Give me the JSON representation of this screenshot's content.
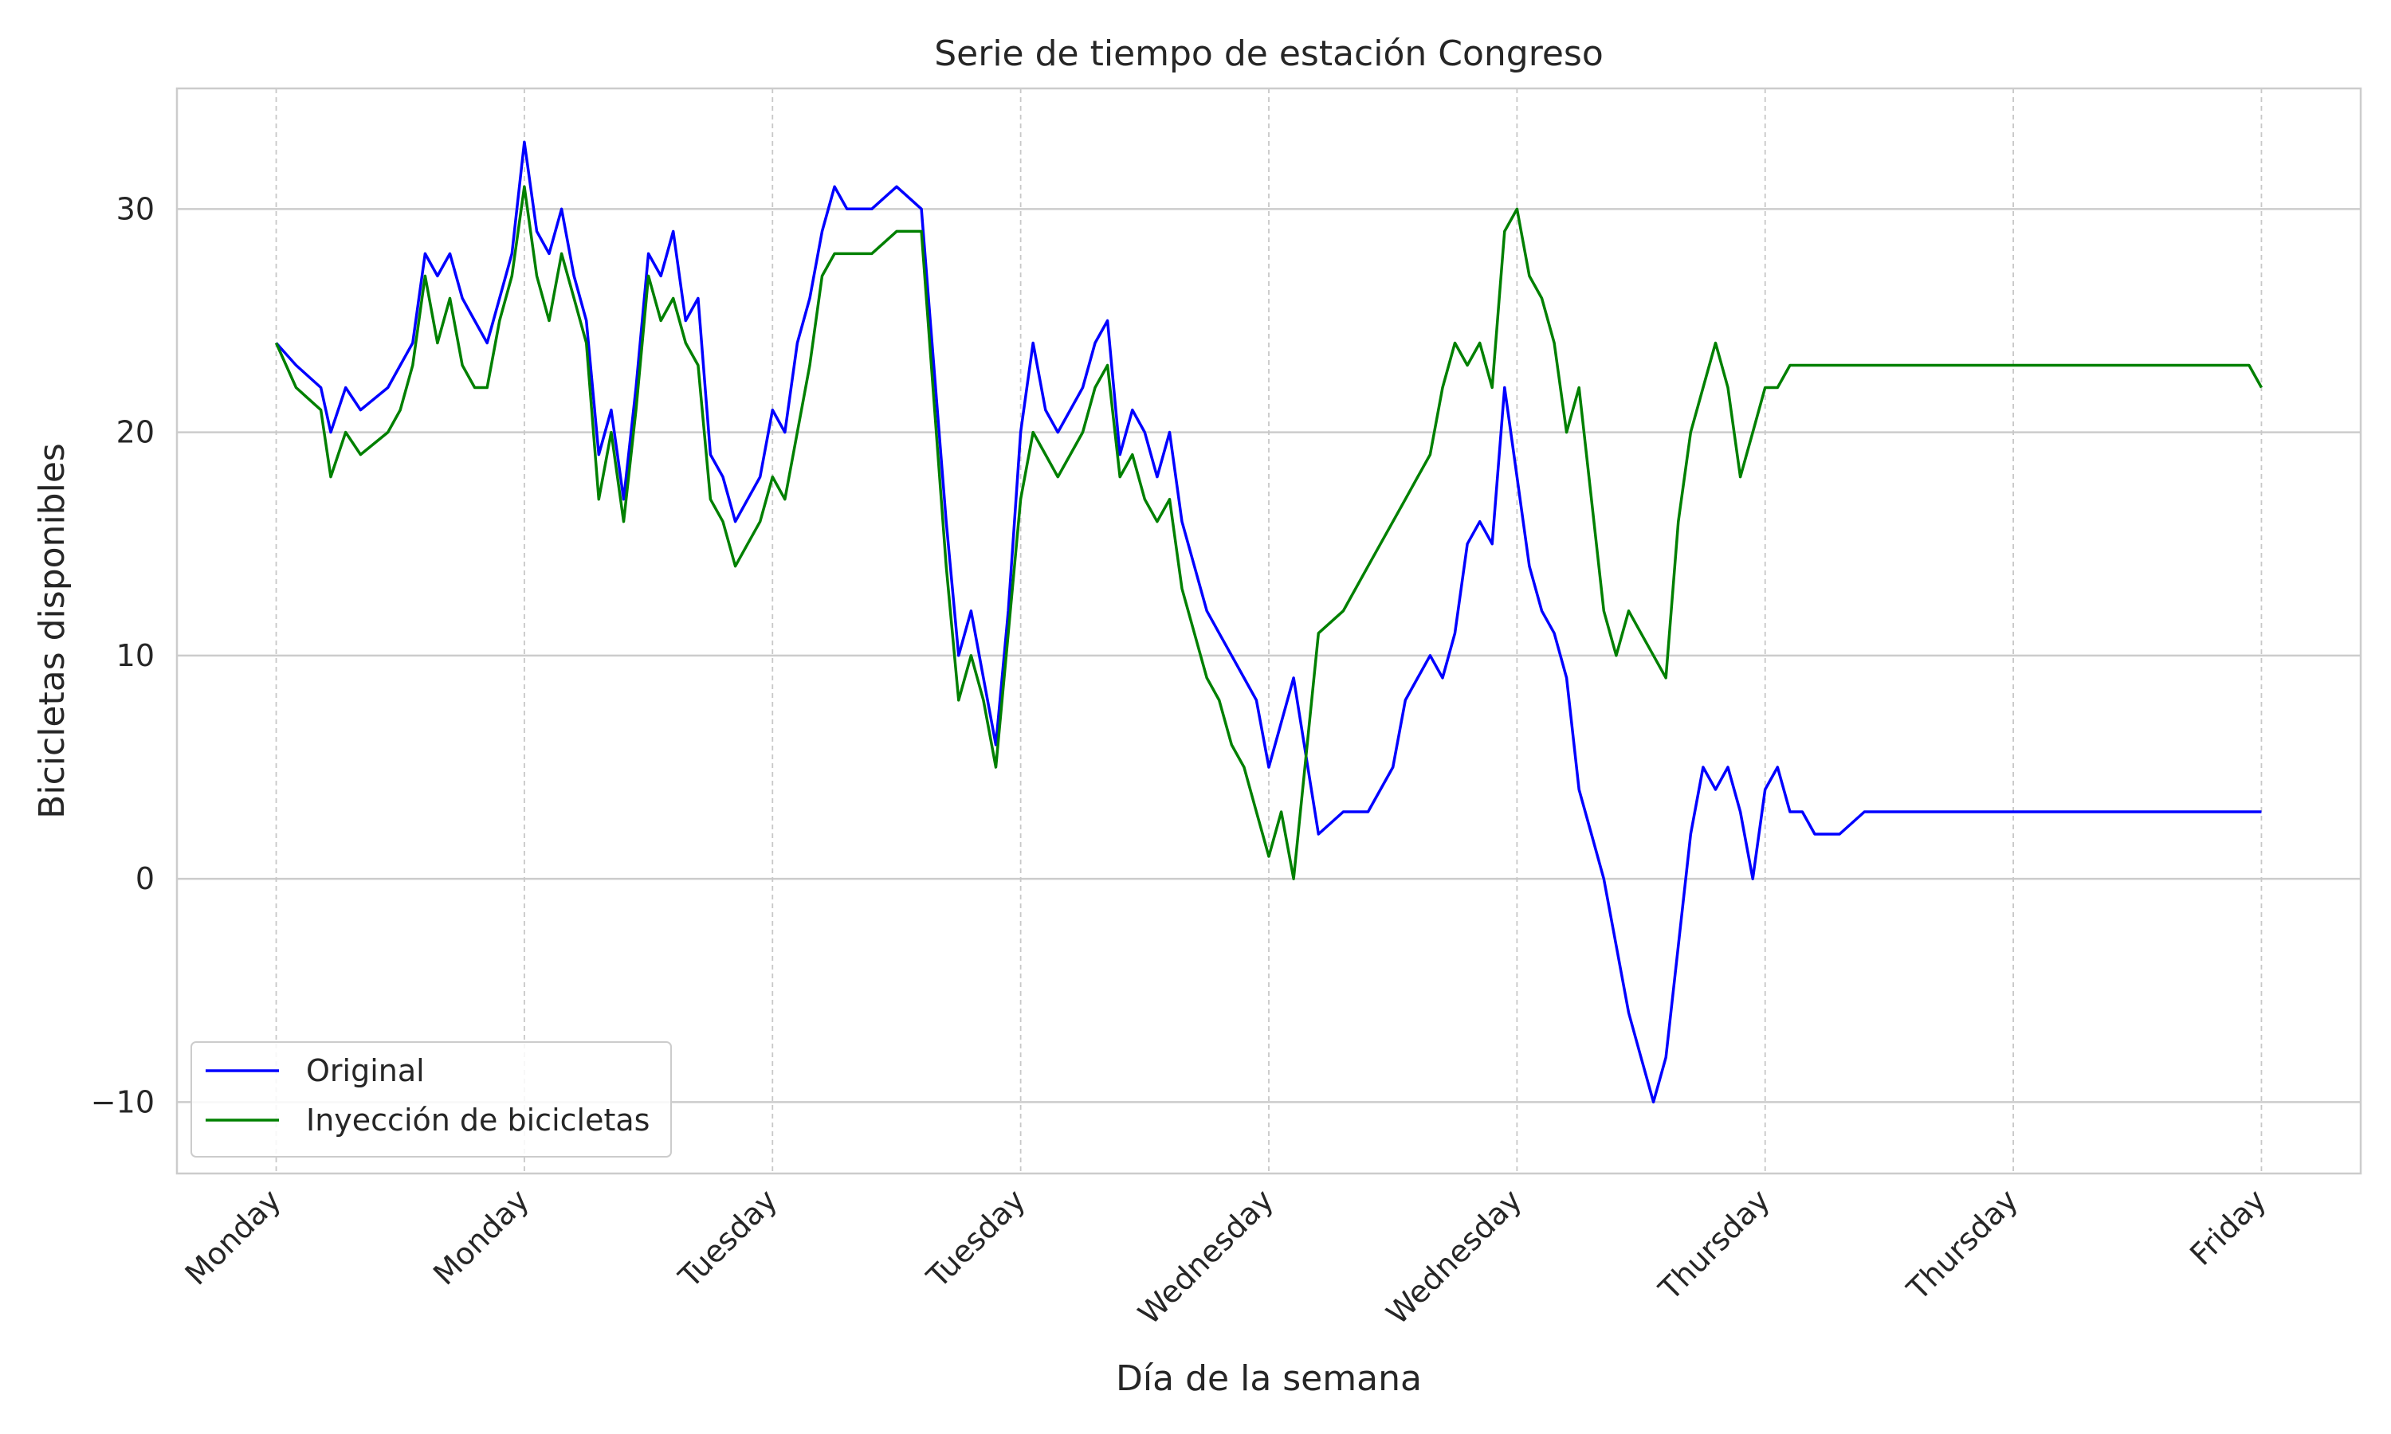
{
  "chart_data": {
    "type": "line",
    "title": "Serie de tiempo de estación  Congreso",
    "xlabel": "Día de la semana",
    "ylabel": "Bicicletas disponibles",
    "xlim": [
      -0.4,
      8.4
    ],
    "ylim": [
      -13.2,
      35.4
    ],
    "x_ticks": [
      0,
      1,
      2,
      3,
      4,
      5,
      6,
      7,
      8
    ],
    "x_tick_labels": [
      "Monday",
      "Monday",
      "Tuesday",
      "Tuesday",
      "Wednesday",
      "Wednesday",
      "Thursday",
      "Thursday",
      "Friday"
    ],
    "y_ticks": [
      -10,
      0,
      10,
      20,
      30
    ],
    "y_tick_labels": [
      "−10",
      "0",
      "10",
      "20",
      "30"
    ],
    "grid": true,
    "legend_position": "bottom-left",
    "series": [
      {
        "name": "Original",
        "color": "#0000ff",
        "x": [
          0,
          0.08,
          0.18,
          0.22,
          0.28,
          0.34,
          0.45,
          0.5,
          0.55,
          0.6,
          0.65,
          0.7,
          0.75,
          0.8,
          0.85,
          0.9,
          0.95,
          1.0,
          1.05,
          1.1,
          1.15,
          1.2,
          1.25,
          1.3,
          1.35,
          1.4,
          1.45,
          1.5,
          1.55,
          1.6,
          1.65,
          1.7,
          1.75,
          1.8,
          1.85,
          1.9,
          1.95,
          2.0,
          2.05,
          2.1,
          2.15,
          2.2,
          2.25,
          2.3,
          2.4,
          2.5,
          2.6,
          2.7,
          2.75,
          2.8,
          2.85,
          2.9,
          2.95,
          3.0,
          3.05,
          3.1,
          3.15,
          3.2,
          3.25,
          3.3,
          3.35,
          3.4,
          3.45,
          3.5,
          3.55,
          3.6,
          3.65,
          3.7,
          3.75,
          3.8,
          3.85,
          3.9,
          3.95,
          4.0,
          4.05,
          4.1,
          4.2,
          4.3,
          4.4,
          4.5,
          4.55,
          4.6,
          4.65,
          4.7,
          4.75,
          4.8,
          4.85,
          4.9,
          4.95,
          5.0,
          5.05,
          5.1,
          5.15,
          5.2,
          5.25,
          5.3,
          5.35,
          5.4,
          5.45,
          5.5,
          5.55,
          5.6,
          5.65,
          5.7,
          5.75,
          5.8,
          5.85,
          5.9,
          5.95,
          6.0,
          6.05,
          6.1,
          6.15,
          6.2,
          6.3,
          6.4,
          6.5,
          6.6,
          6.7,
          6.8,
          6.85,
          6.9,
          6.95,
          7.0,
          7.05,
          7.1,
          7.15,
          7.2,
          7.25,
          7.3,
          7.35,
          7.4,
          7.45,
          7.5,
          7.55,
          7.6,
          7.65,
          7.7,
          7.75,
          7.8,
          7.85,
          7.9,
          7.95,
          8.0
        ],
        "y": [
          24,
          23,
          22,
          20,
          22,
          21,
          22,
          23,
          24,
          28,
          27,
          28,
          26,
          25,
          24,
          26,
          28,
          33,
          29,
          28,
          30,
          27,
          25,
          19,
          21,
          17,
          22,
          28,
          27,
          29,
          25,
          26,
          19,
          18,
          16,
          17,
          18,
          21,
          20,
          24,
          26,
          29,
          31,
          30,
          30,
          31,
          30,
          16,
          10,
          12,
          9,
          6,
          12,
          20,
          24,
          21,
          20,
          21,
          22,
          24,
          25,
          19,
          21,
          20,
          18,
          20,
          16,
          14,
          12,
          11,
          10,
          9,
          8,
          5,
          7,
          9,
          2,
          3,
          3,
          5,
          8,
          9,
          10,
          9,
          11,
          15,
          16,
          15,
          22,
          18,
          14,
          12,
          11,
          9,
          4,
          2,
          0,
          -3,
          -6,
          -8,
          -10,
          -8,
          -3,
          2,
          5,
          4,
          5,
          3,
          0,
          4,
          5,
          3,
          3,
          2,
          2,
          3,
          3,
          3,
          3,
          3,
          3,
          3,
          3,
          3,
          3,
          3,
          3,
          3,
          3,
          3,
          3,
          3,
          3,
          3,
          3,
          3,
          3,
          3,
          3,
          3,
          3,
          3,
          3,
          3
        ]
      },
      {
        "name": "Inyección de bicicletas",
        "color": "#008000",
        "x": [
          0,
          0.08,
          0.18,
          0.22,
          0.28,
          0.34,
          0.45,
          0.5,
          0.55,
          0.6,
          0.65,
          0.7,
          0.75,
          0.8,
          0.85,
          0.9,
          0.95,
          1.0,
          1.05,
          1.1,
          1.15,
          1.2,
          1.25,
          1.3,
          1.35,
          1.4,
          1.45,
          1.5,
          1.55,
          1.6,
          1.65,
          1.7,
          1.75,
          1.8,
          1.85,
          1.9,
          1.95,
          2.0,
          2.05,
          2.1,
          2.15,
          2.2,
          2.25,
          2.3,
          2.4,
          2.5,
          2.6,
          2.7,
          2.75,
          2.8,
          2.85,
          2.9,
          2.95,
          3.0,
          3.05,
          3.1,
          3.15,
          3.2,
          3.25,
          3.3,
          3.35,
          3.4,
          3.45,
          3.5,
          3.55,
          3.6,
          3.65,
          3.7,
          3.75,
          3.8,
          3.85,
          3.9,
          3.95,
          4.0,
          4.05,
          4.1,
          4.2,
          4.3,
          4.4,
          4.5,
          4.55,
          4.6,
          4.65,
          4.7,
          4.75,
          4.8,
          4.85,
          4.9,
          4.95,
          5.0,
          5.05,
          5.1,
          5.15,
          5.2,
          5.25,
          5.3,
          5.35,
          5.4,
          5.45,
          5.5,
          5.55,
          5.6,
          5.65,
          5.7,
          5.75,
          5.8,
          5.85,
          5.9,
          5.95,
          6.0,
          6.05,
          6.1,
          6.15,
          6.2,
          6.3,
          6.4,
          6.5,
          6.6,
          6.7,
          6.8,
          6.85,
          6.9,
          6.95,
          7.0,
          7.05,
          7.1,
          7.15,
          7.2,
          7.25,
          7.3,
          7.35,
          7.4,
          7.45,
          7.5,
          7.55,
          7.6,
          7.65,
          7.7,
          7.75,
          7.8,
          7.85,
          7.9,
          7.95,
          8.0
        ],
        "y": [
          24,
          22,
          21,
          18,
          20,
          19,
          20,
          21,
          23,
          27,
          24,
          26,
          23,
          22,
          22,
          25,
          27,
          31,
          27,
          25,
          28,
          26,
          24,
          17,
          20,
          16,
          21,
          27,
          25,
          26,
          24,
          23,
          17,
          16,
          14,
          15,
          16,
          18,
          17,
          20,
          23,
          27,
          28,
          28,
          28,
          29,
          29,
          14,
          8,
          10,
          8,
          5,
          11,
          17,
          20,
          19,
          18,
          19,
          20,
          22,
          23,
          18,
          19,
          17,
          16,
          17,
          13,
          11,
          9,
          8,
          6,
          5,
          3,
          1,
          3,
          0,
          11,
          12,
          14,
          16,
          17,
          18,
          19,
          22,
          24,
          23,
          24,
          22,
          29,
          30,
          27,
          26,
          24,
          20,
          22,
          17,
          12,
          10,
          12,
          11,
          10,
          9,
          16,
          20,
          22,
          24,
          22,
          18,
          20,
          22,
          22,
          23,
          23,
          23,
          23,
          23,
          23,
          23,
          23,
          23,
          23,
          23,
          23,
          23,
          23,
          23,
          23,
          23,
          23,
          23,
          23,
          23,
          23,
          23,
          23,
          23,
          23,
          23,
          23,
          23,
          23,
          23,
          23,
          22
        ]
      }
    ]
  }
}
